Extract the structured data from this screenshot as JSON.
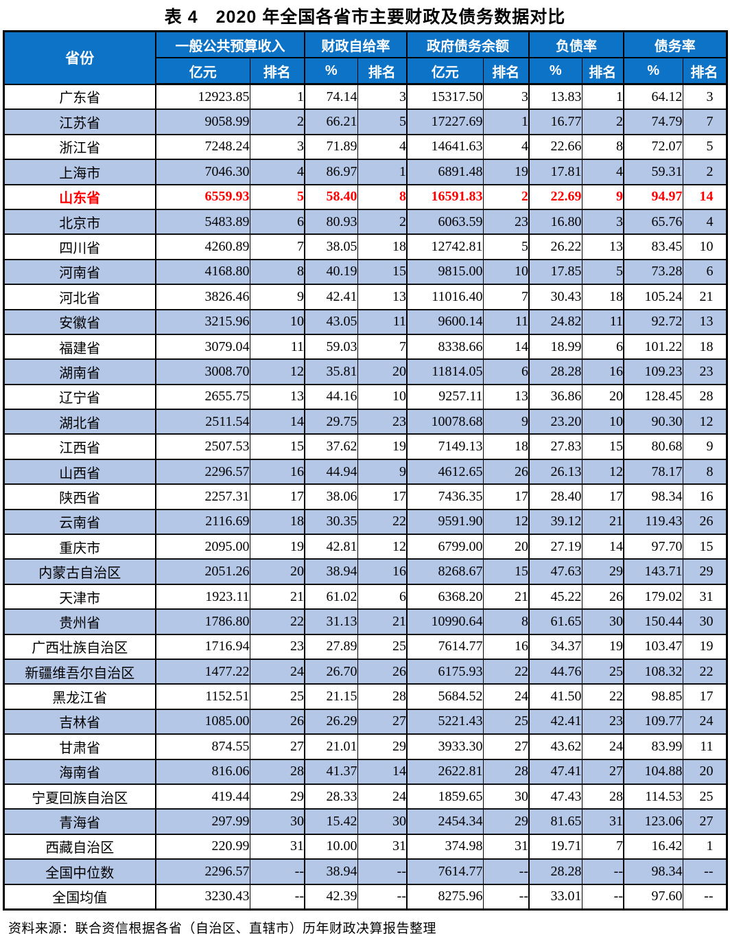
{
  "title": "表 4　2020 年全国各省市主要财政及债务数据对比",
  "source_note": "资料来源：联合资信根据各省（自治区、直辖市）历年财政决算报告整理",
  "colors": {
    "header_bg": "#0d73c6",
    "alt_row_bg": "#b4c7e7",
    "highlight_text": "#ff0000",
    "header_text": "#ffffff",
    "body_text": "#000000"
  },
  "table": {
    "col_province": "省份",
    "groups": [
      {
        "label": "一般公共预算收入",
        "sub": [
          "亿元",
          "排名"
        ]
      },
      {
        "label": "财政自给率",
        "sub": [
          "%",
          "排名"
        ]
      },
      {
        "label": "政府债务余额",
        "sub": [
          "亿元",
          "排名"
        ]
      },
      {
        "label": "负债率",
        "sub": [
          "%",
          "排名"
        ]
      },
      {
        "label": "债务率",
        "sub": [
          "%",
          "排名"
        ]
      }
    ],
    "rows": [
      {
        "province": "广东省",
        "values": [
          "12923.85",
          "1",
          "74.14",
          "3",
          "15317.50",
          "3",
          "13.83",
          "1",
          "64.12",
          "3"
        ],
        "highlight": false
      },
      {
        "province": "江苏省",
        "values": [
          "9058.99",
          "2",
          "66.21",
          "5",
          "17227.69",
          "1",
          "16.77",
          "2",
          "74.79",
          "7"
        ],
        "highlight": false
      },
      {
        "province": "浙江省",
        "values": [
          "7248.24",
          "3",
          "71.89",
          "4",
          "14641.63",
          "4",
          "22.66",
          "8",
          "72.07",
          "5"
        ],
        "highlight": false
      },
      {
        "province": "上海市",
        "values": [
          "7046.30",
          "4",
          "86.97",
          "1",
          "6891.48",
          "19",
          "17.81",
          "4",
          "59.31",
          "2"
        ],
        "highlight": false
      },
      {
        "province": "山东省",
        "values": [
          "6559.93",
          "5",
          "58.40",
          "8",
          "16591.83",
          "2",
          "22.69",
          "9",
          "94.97",
          "14"
        ],
        "highlight": true
      },
      {
        "province": "北京市",
        "values": [
          "5483.89",
          "6",
          "80.93",
          "2",
          "6063.59",
          "23",
          "16.80",
          "3",
          "65.76",
          "4"
        ],
        "highlight": false
      },
      {
        "province": "四川省",
        "values": [
          "4260.89",
          "7",
          "38.05",
          "18",
          "12742.81",
          "5",
          "26.22",
          "13",
          "83.45",
          "10"
        ],
        "highlight": false
      },
      {
        "province": "河南省",
        "values": [
          "4168.80",
          "8",
          "40.19",
          "15",
          "9815.00",
          "10",
          "17.85",
          "5",
          "73.28",
          "6"
        ],
        "highlight": false
      },
      {
        "province": "河北省",
        "values": [
          "3826.46",
          "9",
          "42.41",
          "13",
          "11016.40",
          "7",
          "30.43",
          "18",
          "105.24",
          "21"
        ],
        "highlight": false
      },
      {
        "province": "安徽省",
        "values": [
          "3215.96",
          "10",
          "43.05",
          "11",
          "9600.14",
          "11",
          "24.82",
          "11",
          "92.72",
          "13"
        ],
        "highlight": false
      },
      {
        "province": "福建省",
        "values": [
          "3079.04",
          "11",
          "59.03",
          "7",
          "8338.66",
          "14",
          "18.99",
          "6",
          "101.22",
          "18"
        ],
        "highlight": false
      },
      {
        "province": "湖南省",
        "values": [
          "3008.70",
          "12",
          "35.81",
          "20",
          "11814.05",
          "6",
          "28.28",
          "16",
          "109.23",
          "23"
        ],
        "highlight": false
      },
      {
        "province": "辽宁省",
        "values": [
          "2655.75",
          "13",
          "44.16",
          "10",
          "9257.11",
          "13",
          "36.86",
          "20",
          "128.45",
          "28"
        ],
        "highlight": false
      },
      {
        "province": "湖北省",
        "values": [
          "2511.54",
          "14",
          "29.75",
          "23",
          "10078.68",
          "9",
          "23.20",
          "10",
          "90.30",
          "12"
        ],
        "highlight": false
      },
      {
        "province": "江西省",
        "values": [
          "2507.53",
          "15",
          "37.62",
          "19",
          "7149.13",
          "18",
          "27.83",
          "15",
          "80.68",
          "9"
        ],
        "highlight": false
      },
      {
        "province": "山西省",
        "values": [
          "2296.57",
          "16",
          "44.94",
          "9",
          "4612.65",
          "26",
          "26.13",
          "12",
          "78.17",
          "8"
        ],
        "highlight": false
      },
      {
        "province": "陕西省",
        "values": [
          "2257.31",
          "17",
          "38.06",
          "17",
          "7436.35",
          "17",
          "28.40",
          "17",
          "98.34",
          "16"
        ],
        "highlight": false
      },
      {
        "province": "云南省",
        "values": [
          "2116.69",
          "18",
          "30.35",
          "22",
          "9591.90",
          "12",
          "39.12",
          "21",
          "119.43",
          "26"
        ],
        "highlight": false
      },
      {
        "province": "重庆市",
        "values": [
          "2095.00",
          "19",
          "42.81",
          "12",
          "6799.00",
          "20",
          "27.19",
          "14",
          "97.70",
          "15"
        ],
        "highlight": false
      },
      {
        "province": "内蒙古自治区",
        "values": [
          "2051.26",
          "20",
          "38.94",
          "16",
          "8268.67",
          "15",
          "47.63",
          "29",
          "143.71",
          "29"
        ],
        "highlight": false
      },
      {
        "province": "天津市",
        "values": [
          "1923.11",
          "21",
          "61.02",
          "6",
          "6368.20",
          "21",
          "45.22",
          "26",
          "179.02",
          "31"
        ],
        "highlight": false
      },
      {
        "province": "贵州省",
        "values": [
          "1786.80",
          "22",
          "31.13",
          "21",
          "10990.64",
          "8",
          "61.65",
          "30",
          "150.44",
          "30"
        ],
        "highlight": false
      },
      {
        "province": "广西壮族自治区",
        "values": [
          "1716.94",
          "23",
          "27.89",
          "25",
          "7614.77",
          "16",
          "34.37",
          "19",
          "103.47",
          "19"
        ],
        "highlight": false
      },
      {
        "province": "新疆维吾尔自治区",
        "values": [
          "1477.22",
          "24",
          "26.70",
          "26",
          "6175.93",
          "22",
          "44.76",
          "25",
          "108.32",
          "22"
        ],
        "highlight": false
      },
      {
        "province": "黑龙江省",
        "values": [
          "1152.51",
          "25",
          "21.15",
          "28",
          "5684.52",
          "24",
          "41.50",
          "22",
          "98.85",
          "17"
        ],
        "highlight": false
      },
      {
        "province": "吉林省",
        "values": [
          "1085.00",
          "26",
          "26.29",
          "27",
          "5221.43",
          "25",
          "42.41",
          "23",
          "109.77",
          "24"
        ],
        "highlight": false
      },
      {
        "province": "甘肃省",
        "values": [
          "874.55",
          "27",
          "21.01",
          "29",
          "3933.30",
          "27",
          "43.62",
          "24",
          "83.99",
          "11"
        ],
        "highlight": false
      },
      {
        "province": "海南省",
        "values": [
          "816.06",
          "28",
          "41.37",
          "14",
          "2622.81",
          "28",
          "47.41",
          "27",
          "104.88",
          "20"
        ],
        "highlight": false
      },
      {
        "province": "宁夏回族自治区",
        "values": [
          "419.44",
          "29",
          "28.33",
          "24",
          "1859.65",
          "30",
          "47.43",
          "28",
          "114.53",
          "25"
        ],
        "highlight": false
      },
      {
        "province": "青海省",
        "values": [
          "297.99",
          "30",
          "15.42",
          "30",
          "2454.34",
          "29",
          "81.65",
          "31",
          "123.06",
          "27"
        ],
        "highlight": false
      },
      {
        "province": "西藏自治区",
        "values": [
          "220.99",
          "31",
          "10.00",
          "31",
          "374.98",
          "31",
          "19.71",
          "7",
          "16.42",
          "1"
        ],
        "highlight": false
      },
      {
        "province": "全国中位数",
        "values": [
          "2296.57",
          "--",
          "38.94",
          "--",
          "7614.77",
          "--",
          "28.28",
          "--",
          "98.34",
          "--"
        ],
        "highlight": false
      },
      {
        "province": "全国均值",
        "values": [
          "3230.43",
          "--",
          "42.39",
          "--",
          "8275.96",
          "--",
          "33.01",
          "--",
          "97.60",
          "--"
        ],
        "highlight": false
      }
    ]
  }
}
